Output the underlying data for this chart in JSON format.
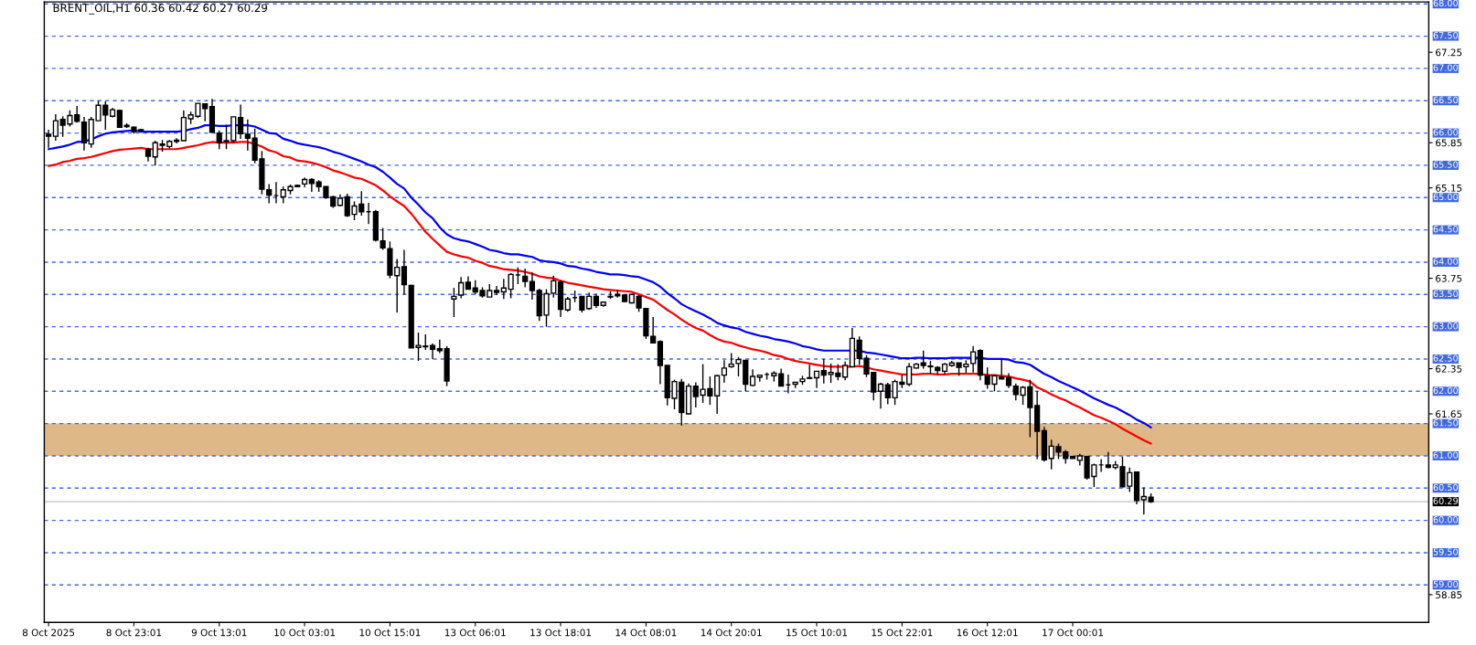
{
  "chart_data": {
    "type": "candlestick",
    "title": "BRENT_OIL,H1 60.36 60.42 60.27 60.29",
    "categories": [
      "8 Oct 2025",
      null,
      null,
      null,
      null,
      null,
      null,
      null,
      null,
      null,
      null,
      null,
      "8 Oct 23:01",
      null,
      null,
      null,
      null,
      null,
      null,
      null,
      null,
      null,
      null,
      null,
      "9 Oct 13:01",
      null,
      null,
      null,
      null,
      null,
      null,
      null,
      null,
      null,
      null,
      null,
      "10 Oct 03:01",
      null,
      null,
      null,
      null,
      null,
      null,
      null,
      null,
      null,
      null,
      null,
      "10 Oct 15:01",
      null,
      null,
      null,
      null,
      null,
      null,
      null,
      null,
      null,
      null,
      null,
      "13 Oct 06:01",
      null,
      null,
      null,
      null,
      null,
      null,
      null,
      null,
      null,
      null,
      null,
      "13 Oct 18:01",
      null,
      null,
      null,
      null,
      null,
      null,
      null,
      null,
      null,
      null,
      null,
      "14 Oct 08:01",
      null,
      null,
      null,
      null,
      null,
      null,
      null,
      null,
      null,
      null,
      null,
      "14 Oct 20:01",
      null,
      null,
      null,
      null,
      null,
      null,
      null,
      null,
      null,
      null,
      null,
      "15 Oct 10:01",
      null,
      null,
      null,
      null,
      null,
      null,
      null,
      null,
      null,
      null,
      null,
      "15 Oct 22:01",
      null,
      null,
      null,
      null,
      null,
      null,
      null,
      null,
      null,
      null,
      null,
      "16 Oct 12:01",
      null,
      null,
      null,
      null,
      null,
      null,
      null,
      null,
      null,
      null,
      null,
      "17 Oct 00:01",
      null,
      null,
      null,
      null,
      null,
      null,
      null,
      null,
      null,
      null,
      null
    ],
    "ohlc": [
      [
        65.98,
        66.05,
        65.77,
        65.95
      ],
      [
        65.95,
        66.29,
        65.88,
        66.19
      ],
      [
        66.21,
        66.26,
        65.94,
        66.12
      ],
      [
        66.14,
        66.35,
        66.1,
        66.27
      ],
      [
        66.28,
        66.42,
        66.16,
        66.18
      ],
      [
        66.17,
        66.25,
        65.73,
        65.85
      ],
      [
        65.83,
        66.25,
        65.77,
        66.21
      ],
      [
        66.19,
        66.5,
        66.19,
        66.43
      ],
      [
        66.43,
        66.49,
        66.05,
        66.28
      ],
      [
        66.26,
        66.39,
        66.24,
        66.36
      ],
      [
        66.35,
        66.36,
        66.08,
        66.09
      ],
      [
        66.12,
        66.15,
        66.08,
        66.1
      ],
      [
        66.09,
        66.1,
        65.99,
        66.02
      ],
      [
        66.05,
        66.06,
        66.02,
        66.04
      ],
      [
        65.75,
        65.77,
        65.56,
        65.64
      ],
      [
        65.63,
        65.88,
        65.5,
        65.85
      ],
      [
        65.83,
        65.89,
        65.71,
        65.81
      ],
      [
        65.79,
        65.89,
        65.76,
        65.87
      ],
      [
        65.89,
        65.92,
        65.84,
        65.87
      ],
      [
        65.88,
        66.35,
        65.88,
        66.24
      ],
      [
        66.22,
        66.33,
        66.14,
        66.28
      ],
      [
        66.26,
        66.46,
        66.23,
        66.46
      ],
      [
        66.45,
        66.46,
        66.18,
        66.38
      ],
      [
        66.41,
        66.53,
        66.01,
        66.01
      ],
      [
        66.0,
        66.04,
        65.75,
        65.85
      ],
      [
        65.88,
        66.13,
        65.75,
        65.87
      ],
      [
        65.88,
        66.25,
        65.85,
        66.25
      ],
      [
        66.24,
        66.44,
        65.91,
        65.99
      ],
      [
        65.98,
        66.21,
        65.73,
        65.92
      ],
      [
        65.92,
        66.07,
        65.53,
        65.58
      ],
      [
        65.6,
        65.72,
        65.05,
        65.13
      ],
      [
        65.12,
        65.21,
        64.91,
        65.04
      ],
      [
        65.03,
        65.24,
        64.91,
        65.03
      ],
      [
        65.01,
        65.17,
        64.91,
        65.12
      ],
      [
        65.11,
        65.2,
        65.05,
        65.17
      ],
      [
        65.19,
        65.2,
        65.16,
        65.17
      ],
      [
        65.21,
        65.31,
        65.16,
        65.28
      ],
      [
        65.28,
        65.3,
        65.09,
        65.22
      ],
      [
        65.24,
        65.27,
        65.09,
        65.17
      ],
      [
        65.17,
        65.17,
        64.98,
        65.0
      ],
      [
        65.01,
        65.03,
        64.84,
        64.87
      ],
      [
        64.88,
        65.05,
        64.87,
        64.99
      ],
      [
        65.01,
        65.06,
        64.7,
        64.72
      ],
      [
        64.74,
        64.94,
        64.65,
        64.87
      ],
      [
        64.9,
        65.1,
        64.72,
        64.78
      ],
      [
        64.78,
        64.92,
        64.59,
        64.78
      ],
      [
        64.78,
        64.81,
        64.32,
        64.34
      ],
      [
        64.33,
        64.53,
        64.19,
        64.22
      ],
      [
        64.21,
        64.32,
        63.75,
        63.8
      ],
      [
        63.79,
        64.05,
        63.22,
        63.92
      ],
      [
        63.93,
        64.19,
        63.5,
        63.65
      ],
      [
        63.64,
        63.65,
        62.67,
        62.67
      ],
      [
        62.68,
        62.91,
        62.47,
        62.71
      ],
      [
        62.7,
        62.88,
        62.64,
        62.69
      ],
      [
        62.71,
        62.74,
        62.5,
        62.65
      ],
      [
        62.66,
        62.8,
        62.59,
        62.63
      ],
      [
        62.66,
        62.7,
        62.08,
        62.16
      ],
      [
        63.43,
        63.6,
        63.15,
        63.47
      ],
      [
        63.49,
        63.77,
        63.44,
        63.68
      ],
      [
        63.69,
        63.78,
        63.58,
        63.58
      ],
      [
        63.6,
        63.72,
        63.5,
        63.54
      ],
      [
        63.56,
        63.61,
        63.45,
        63.48
      ],
      [
        63.46,
        63.66,
        63.46,
        63.56
      ],
      [
        63.56,
        63.63,
        63.49,
        63.53
      ],
      [
        63.54,
        63.74,
        63.43,
        63.6
      ],
      [
        63.58,
        63.83,
        63.44,
        63.81
      ],
      [
        63.8,
        63.92,
        63.66,
        63.8
      ],
      [
        63.78,
        63.9,
        63.61,
        63.7
      ],
      [
        63.7,
        63.84,
        63.42,
        63.56
      ],
      [
        63.56,
        63.59,
        63.09,
        63.17
      ],
      [
        63.18,
        63.58,
        63.0,
        63.51
      ],
      [
        63.52,
        63.79,
        63.45,
        63.71
      ],
      [
        63.69,
        63.72,
        63.15,
        63.27
      ],
      [
        63.26,
        63.46,
        63.23,
        63.43
      ],
      [
        63.45,
        63.56,
        63.38,
        63.45
      ],
      [
        63.47,
        63.47,
        63.22,
        63.26
      ],
      [
        63.28,
        63.53,
        63.26,
        63.47
      ],
      [
        63.47,
        63.51,
        63.29,
        63.33
      ],
      [
        63.33,
        63.38,
        63.31,
        63.38
      ],
      [
        63.47,
        63.55,
        63.43,
        63.46
      ],
      [
        63.5,
        63.57,
        63.45,
        63.48
      ],
      [
        63.49,
        63.5,
        63.39,
        63.39
      ],
      [
        63.37,
        63.5,
        63.36,
        63.5
      ],
      [
        63.47,
        63.49,
        63.23,
        63.29
      ],
      [
        63.28,
        63.29,
        62.81,
        62.86
      ],
      [
        62.85,
        63.15,
        62.74,
        62.75
      ],
      [
        62.77,
        62.79,
        62.11,
        62.4
      ],
      [
        62.4,
        62.4,
        61.78,
        61.9
      ],
      [
        61.89,
        62.18,
        61.72,
        62.15
      ],
      [
        62.14,
        62.19,
        61.47,
        61.67
      ],
      [
        61.65,
        62.12,
        61.64,
        62.08
      ],
      [
        62.08,
        62.14,
        61.75,
        61.92
      ],
      [
        61.94,
        62.42,
        61.82,
        62.03
      ],
      [
        62.04,
        62.23,
        61.79,
        61.93
      ],
      [
        61.93,
        62.25,
        61.65,
        62.24
      ],
      [
        62.25,
        62.48,
        62.13,
        62.36
      ],
      [
        62.38,
        62.59,
        62.36,
        62.42
      ],
      [
        62.43,
        62.53,
        62.23,
        62.49
      ],
      [
        62.48,
        62.48,
        62.0,
        62.11
      ],
      [
        62.09,
        62.34,
        62.08,
        62.23
      ],
      [
        62.22,
        62.26,
        62.15,
        62.25
      ],
      [
        62.26,
        62.29,
        62.18,
        62.26
      ],
      [
        62.24,
        62.31,
        62.15,
        62.28
      ],
      [
        62.27,
        62.35,
        62.08,
        62.08
      ],
      [
        62.1,
        62.26,
        61.97,
        62.1
      ],
      [
        62.11,
        62.14,
        62.05,
        62.14
      ],
      [
        62.15,
        62.24,
        62.1,
        62.19
      ],
      [
        62.21,
        62.41,
        62.19,
        62.2
      ],
      [
        62.21,
        62.31,
        62.05,
        62.31
      ],
      [
        62.32,
        62.5,
        62.12,
        62.25
      ],
      [
        62.26,
        62.43,
        62.13,
        62.29
      ],
      [
        62.28,
        62.42,
        62.17,
        62.23
      ],
      [
        62.22,
        62.46,
        62.17,
        62.4
      ],
      [
        62.38,
        62.98,
        62.38,
        62.82
      ],
      [
        62.79,
        62.85,
        62.41,
        62.51
      ],
      [
        62.51,
        62.56,
        62.22,
        62.27
      ],
      [
        62.29,
        62.29,
        61.86,
        61.99
      ],
      [
        62.0,
        62.13,
        61.73,
        62.11
      ],
      [
        62.1,
        62.13,
        61.8,
        61.9
      ],
      [
        61.9,
        62.18,
        61.79,
        62.15
      ],
      [
        62.14,
        62.25,
        62.05,
        62.11
      ],
      [
        62.11,
        62.44,
        62.08,
        62.38
      ],
      [
        62.36,
        62.44,
        62.35,
        62.42
      ],
      [
        62.44,
        62.63,
        62.35,
        62.4
      ],
      [
        62.39,
        62.47,
        62.27,
        62.38
      ],
      [
        62.37,
        62.39,
        62.26,
        62.32
      ],
      [
        62.31,
        62.44,
        62.27,
        62.42
      ],
      [
        62.4,
        62.47,
        62.38,
        62.44
      ],
      [
        62.44,
        62.44,
        62.24,
        62.37
      ],
      [
        62.38,
        62.48,
        62.28,
        62.42
      ],
      [
        62.43,
        62.7,
        62.29,
        62.61
      ],
      [
        62.63,
        62.65,
        62.17,
        62.25
      ],
      [
        62.24,
        62.37,
        62.04,
        62.11
      ],
      [
        62.11,
        62.25,
        62.0,
        62.24
      ],
      [
        62.22,
        62.49,
        62.19,
        62.19
      ],
      [
        62.21,
        62.28,
        62.05,
        62.09
      ],
      [
        62.08,
        62.12,
        61.86,
        61.95
      ],
      [
        61.94,
        62.08,
        61.79,
        62.06
      ],
      [
        62.07,
        62.18,
        61.29,
        61.75
      ],
      [
        61.78,
        62.0,
        60.95,
        61.38
      ],
      [
        61.39,
        61.45,
        60.91,
        60.94
      ],
      [
        60.96,
        61.25,
        60.79,
        61.15
      ],
      [
        61.14,
        61.19,
        60.95,
        61.06
      ],
      [
        61.06,
        61.09,
        60.88,
        60.96
      ],
      [
        60.99,
        60.99,
        60.96,
        60.96
      ],
      [
        60.93,
        61.03,
        60.85,
        61.0
      ],
      [
        60.99,
        61.0,
        60.63,
        60.66
      ],
      [
        60.68,
        60.88,
        60.52,
        60.86
      ],
      [
        60.86,
        60.95,
        60.75,
        60.86
      ],
      [
        60.86,
        61.06,
        60.81,
        60.82
      ],
      [
        60.82,
        60.92,
        60.79,
        60.86
      ],
      [
        60.83,
        60.99,
        60.51,
        60.52
      ],
      [
        60.53,
        60.82,
        60.44,
        60.74
      ],
      [
        60.75,
        60.75,
        60.25,
        60.31
      ],
      [
        60.32,
        60.51,
        60.09,
        60.37
      ],
      [
        60.36,
        60.42,
        60.27,
        60.29
      ]
    ],
    "series": [
      {
        "type": "line",
        "color": "#0000ff",
        "values": [
          65.75,
          65.77,
          65.79,
          65.82,
          65.86,
          65.87,
          65.9,
          65.95,
          65.99,
          66.01,
          66.02,
          66.03,
          66.04,
          66.02,
          66.02,
          66.02,
          66.02,
          66.02,
          66.02,
          66.03,
          66.06,
          66.08,
          66.12,
          66.12,
          66.11,
          66.11,
          66.12,
          66.12,
          66.12,
          66.1,
          66.05,
          66.0,
          65.99,
          65.91,
          65.88,
          65.84,
          65.82,
          65.8,
          65.78,
          65.75,
          65.71,
          65.68,
          65.64,
          65.6,
          65.56,
          65.51,
          65.47,
          65.4,
          65.31,
          65.21,
          65.14,
          65.0,
          64.89,
          64.77,
          64.68,
          64.54,
          64.43,
          64.37,
          64.34,
          64.32,
          64.28,
          64.24,
          64.19,
          64.17,
          64.14,
          64.12,
          64.12,
          64.1,
          64.08,
          64.03,
          64.01,
          64.0,
          63.98,
          63.94,
          63.93,
          63.9,
          63.88,
          63.85,
          63.83,
          63.81,
          63.81,
          63.8,
          63.78,
          63.77,
          63.73,
          63.69,
          63.62,
          63.52,
          63.44,
          63.35,
          63.29,
          63.24,
          63.19,
          63.13,
          63.06,
          63.02,
          62.99,
          62.97,
          62.92,
          62.89,
          62.86,
          62.84,
          62.81,
          62.79,
          62.77,
          62.74,
          62.7,
          62.68,
          62.65,
          62.63,
          62.63,
          62.63,
          62.63,
          62.63,
          62.63,
          62.6,
          62.59,
          62.57,
          62.55,
          62.53,
          62.51,
          62.51,
          62.52,
          62.52,
          62.51,
          62.51,
          62.51,
          62.52,
          62.52,
          62.52,
          62.52,
          62.52,
          62.5,
          62.5,
          62.5,
          62.49,
          62.45,
          62.44,
          62.41,
          62.34,
          62.27,
          62.22,
          62.16,
          62.11,
          62.06,
          62.01,
          61.95,
          61.89,
          61.84,
          61.79,
          61.75,
          61.69,
          61.63,
          61.56,
          61.51,
          61.44
        ]
      },
      {
        "type": "line",
        "color": "#ff0000",
        "values": [
          65.49,
          65.51,
          65.55,
          65.57,
          65.6,
          65.61,
          65.63,
          65.66,
          65.69,
          65.72,
          65.74,
          65.75,
          65.76,
          65.77,
          65.75,
          65.75,
          65.75,
          65.75,
          65.75,
          65.77,
          65.79,
          65.81,
          65.84,
          65.86,
          65.85,
          65.85,
          65.85,
          65.86,
          65.86,
          65.83,
          65.79,
          65.73,
          65.7,
          65.64,
          65.62,
          65.57,
          65.56,
          65.54,
          65.51,
          65.47,
          65.42,
          65.39,
          65.35,
          65.31,
          65.29,
          65.24,
          65.19,
          65.11,
          65.02,
          64.94,
          64.87,
          64.75,
          64.61,
          64.47,
          64.36,
          64.26,
          64.16,
          64.12,
          64.09,
          64.07,
          64.02,
          63.99,
          63.94,
          63.92,
          63.89,
          63.88,
          63.87,
          63.85,
          63.82,
          63.78,
          63.76,
          63.75,
          63.71,
          63.68,
          63.66,
          63.64,
          63.62,
          63.6,
          63.58,
          63.57,
          63.56,
          63.55,
          63.54,
          63.5,
          63.46,
          63.42,
          63.34,
          63.26,
          63.19,
          63.11,
          63.04,
          62.98,
          62.94,
          62.87,
          62.81,
          62.77,
          62.75,
          62.71,
          62.68,
          62.65,
          62.63,
          62.6,
          62.56,
          62.54,
          62.5,
          62.47,
          62.45,
          62.43,
          62.41,
          62.39,
          62.38,
          62.38,
          62.38,
          62.38,
          62.39,
          62.37,
          62.34,
          62.32,
          62.3,
          62.28,
          62.26,
          62.26,
          62.26,
          62.27,
          62.27,
          62.26,
          62.26,
          62.27,
          62.27,
          62.27,
          62.27,
          62.27,
          62.25,
          62.25,
          62.24,
          62.23,
          62.2,
          62.18,
          62.15,
          62.06,
          62.01,
          61.95,
          61.9,
          61.86,
          61.8,
          61.75,
          61.69,
          61.63,
          61.59,
          61.54,
          61.49,
          61.42,
          61.36,
          61.3,
          61.24,
          61.19
        ]
      }
    ],
    "ylim": [
      58.42,
      68.03
    ],
    "yticks": [
      58.85,
      61.65,
      62.35,
      63.75,
      65.15,
      65.85,
      67.25
    ],
    "ref_lines": [
      {
        "axis": "y",
        "value": 59.0,
        "label": "59.00",
        "color": "#4169e1",
        "line_style": "dashed"
      },
      {
        "axis": "y",
        "value": 59.5,
        "label": "59.50",
        "color": "#4169e1",
        "line_style": "dashed"
      },
      {
        "axis": "y",
        "value": 60.0,
        "label": "60.00",
        "color": "#4169e1",
        "line_style": "dashed"
      },
      {
        "axis": "y",
        "value": 60.5,
        "label": "60.50",
        "color": "#4169e1",
        "line_style": "dashed"
      },
      {
        "axis": "y",
        "value": 61.0,
        "label": "61.00",
        "color": "#4169e1",
        "line_style": "dashed"
      },
      {
        "axis": "y",
        "value": 61.5,
        "label": "61.50",
        "color": "#4169e1",
        "line_style": "dashed"
      },
      {
        "axis": "y",
        "value": 62.0,
        "label": "62.00",
        "color": "#4169e1",
        "line_style": "dashed"
      },
      {
        "axis": "y",
        "value": 62.5,
        "label": "62.50",
        "color": "#4169e1",
        "line_style": "dashed"
      },
      {
        "axis": "y",
        "value": 63.0,
        "label": "63.00",
        "color": "#4169e1",
        "line_style": "dashed"
      },
      {
        "axis": "y",
        "value": 63.5,
        "label": "63.50",
        "color": "#4169e1",
        "line_style": "dashed"
      },
      {
        "axis": "y",
        "value": 64.0,
        "label": "64.00",
        "color": "#4169e1",
        "line_style": "dashed"
      },
      {
        "axis": "y",
        "value": 64.5,
        "label": "64.50",
        "color": "#4169e1",
        "line_style": "dashed"
      },
      {
        "axis": "y",
        "value": 65.0,
        "label": "65.00",
        "color": "#4169e1",
        "line_style": "dashed"
      },
      {
        "axis": "y",
        "value": 65.5,
        "label": "65.50",
        "color": "#4169e1",
        "line_style": "dashed"
      },
      {
        "axis": "y",
        "value": 66.0,
        "label": "66.00",
        "color": "#4169e1",
        "line_style": "dashed"
      },
      {
        "axis": "y",
        "value": 66.5,
        "label": "66.50",
        "color": "#4169e1",
        "line_style": "dashed"
      },
      {
        "axis": "y",
        "value": 67.0,
        "label": "67.00",
        "color": "#4169e1",
        "line_style": "dashed"
      },
      {
        "axis": "y",
        "value": 67.5,
        "label": "67.50",
        "color": "#4169e1",
        "line_style": "dashed"
      },
      {
        "axis": "y",
        "value": 68.0,
        "label": "68.00",
        "color": "#4169e1",
        "line_style": "dashed"
      },
      {
        "axis": "y",
        "value": 60.29,
        "label": "60.29",
        "color": "#c0c0c0",
        "line_style": "solid"
      }
    ],
    "bands": [
      {
        "axis": "y",
        "from": 61.0,
        "to": 61.5,
        "color": "#deb887"
      }
    ]
  }
}
